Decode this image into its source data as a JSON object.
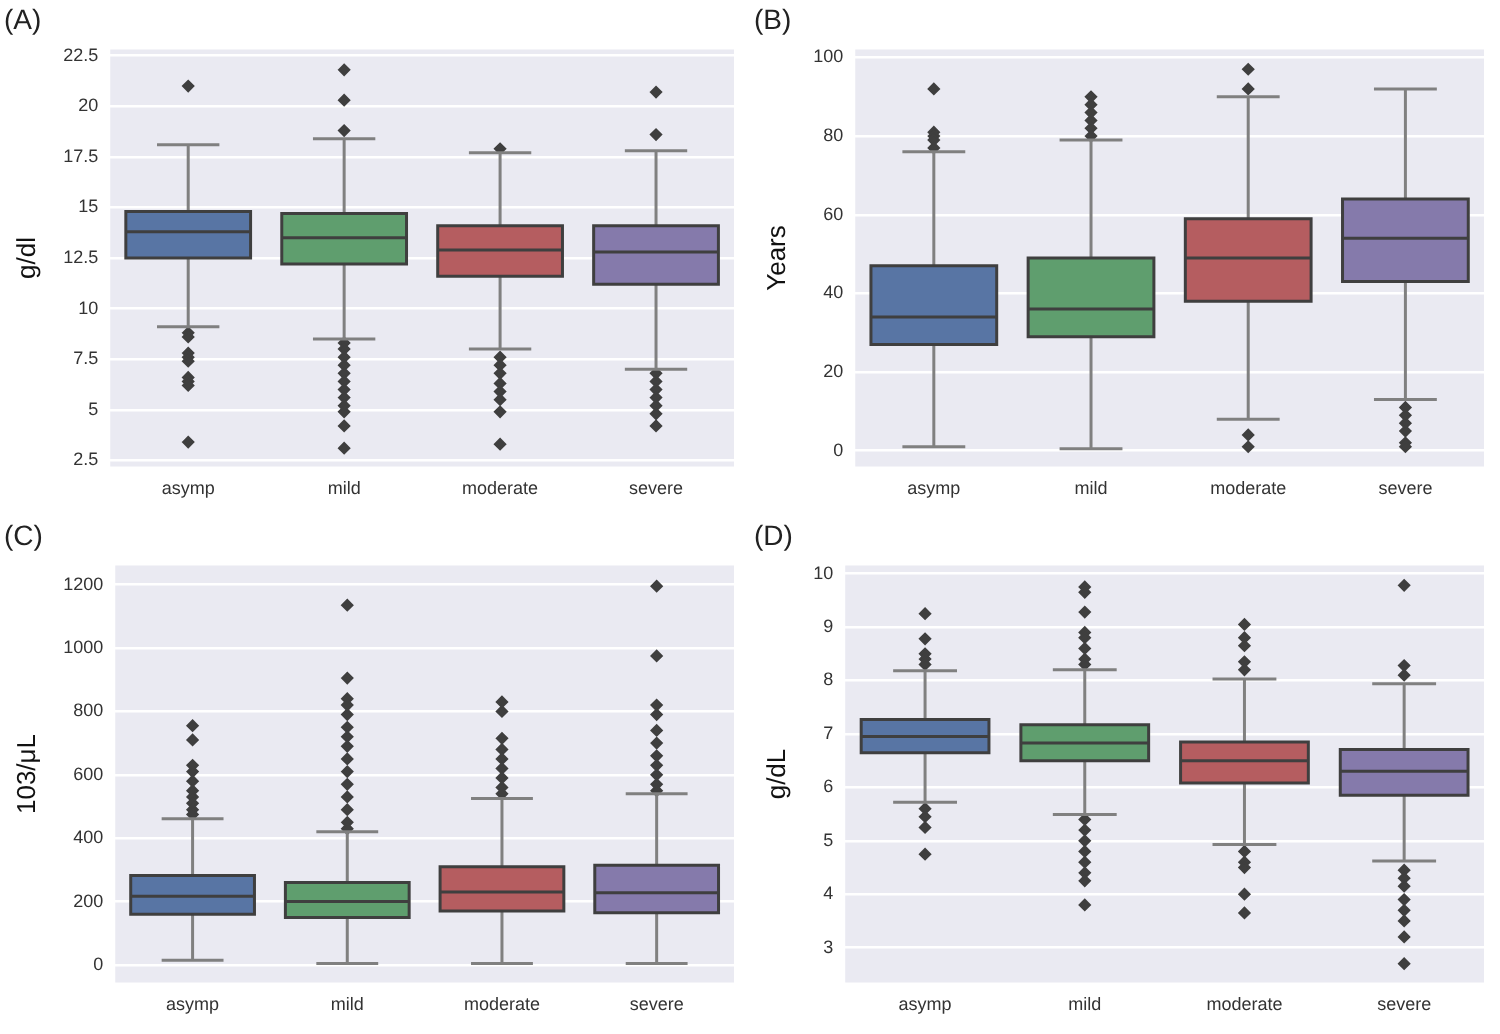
{
  "chart_data": [
    {
      "type": "box",
      "title": "(A)",
      "ylabel": "g/dl",
      "categories": [
        "asymp",
        "mild",
        "moderate",
        "severe"
      ],
      "colors": [
        "#5875a4",
        "#5f9e6e",
        "#b55d60",
        "#857aab"
      ],
      "ylim": [
        2.2,
        22.8
      ],
      "yticks": [
        2.5,
        5.0,
        7.5,
        10.0,
        12.5,
        15.0,
        17.5,
        20.0,
        22.5
      ],
      "grid": "y",
      "legend": false,
      "marker": "diamond",
      "boxes": [
        {
          "low": 9.1,
          "q1": 12.5,
          "median": 13.8,
          "q3": 14.8,
          "high": 18.1,
          "outliers": [
            21.0,
            8.8,
            8.6,
            7.8,
            7.6,
            7.4,
            6.6,
            6.4,
            6.2,
            3.4
          ]
        },
        {
          "low": 8.5,
          "q1": 12.2,
          "median": 13.5,
          "q3": 14.7,
          "high": 18.4,
          "outliers": [
            21.8,
            20.3,
            18.8,
            8.3,
            8.0,
            7.6,
            7.2,
            6.8,
            6.4,
            6.0,
            5.6,
            5.2,
            4.9,
            4.2,
            3.1
          ]
        },
        {
          "low": 8.0,
          "q1": 11.6,
          "median": 12.9,
          "q3": 14.1,
          "high": 17.7,
          "outliers": [
            17.9,
            7.6,
            7.2,
            6.8,
            6.3,
            5.9,
            5.5,
            4.9,
            3.3
          ]
        },
        {
          "low": 7.0,
          "q1": 11.2,
          "median": 12.8,
          "q3": 14.1,
          "high": 17.8,
          "outliers": [
            20.7,
            18.6,
            6.8,
            6.4,
            6.0,
            5.6,
            5.2,
            4.8,
            4.2
          ]
        }
      ]
    },
    {
      "type": "box",
      "title": "(B)",
      "ylabel": "Years",
      "categories": [
        "asymp",
        "mild",
        "moderate",
        "severe"
      ],
      "colors": [
        "#5875a4",
        "#5f9e6e",
        "#b55d60",
        "#857aab"
      ],
      "ylim": [
        -4,
        102
      ],
      "yticks": [
        0,
        20,
        40,
        60,
        80,
        100
      ],
      "grid": "y",
      "legend": false,
      "marker": "diamond",
      "boxes": [
        {
          "low": 1,
          "q1": 27,
          "median": 34,
          "q3": 47,
          "high": 76,
          "outliers": [
            92,
            81,
            80,
            79,
            77
          ]
        },
        {
          "low": 0.5,
          "q1": 29,
          "median": 36,
          "q3": 49,
          "high": 79,
          "outliers": [
            90,
            88,
            86,
            84,
            82,
            80
          ]
        },
        {
          "low": 8,
          "q1": 38,
          "median": 49,
          "q3": 59,
          "high": 90,
          "outliers": [
            97,
            92,
            4,
            1
          ]
        },
        {
          "low": 13,
          "q1": 43,
          "median": 54,
          "q3": 64,
          "high": 92,
          "outliers": [
            11,
            9,
            7,
            5,
            2,
            1
          ]
        }
      ]
    },
    {
      "type": "box",
      "title": "(C)",
      "ylabel": "103/μL",
      "categories": [
        "asymp",
        "mild",
        "moderate",
        "severe"
      ],
      "colors": [
        "#5875a4",
        "#5f9e6e",
        "#b55d60",
        "#857aab"
      ],
      "ylim": [
        -55,
        1260
      ],
      "yticks": [
        0,
        200,
        400,
        600,
        800,
        1000,
        1200
      ],
      "grid": "y",
      "legend": false,
      "marker": "diamond",
      "boxes": [
        {
          "low": 15,
          "q1": 160,
          "median": 217,
          "q3": 282,
          "high": 461,
          "outliers": [
            755,
            710,
            630,
            610,
            580,
            550,
            530,
            510,
            490,
            475
          ]
        },
        {
          "low": 5,
          "q1": 150,
          "median": 200,
          "q3": 260,
          "high": 420,
          "outliers": [
            1135,
            905,
            840,
            820,
            790,
            750,
            720,
            690,
            650,
            610,
            570,
            530,
            490,
            450,
            430
          ]
        },
        {
          "low": 5,
          "q1": 170,
          "median": 230,
          "q3": 310,
          "high": 525,
          "outliers": [
            830,
            800,
            715,
            680,
            650,
            620,
            590,
            560,
            540
          ]
        },
        {
          "low": 5,
          "q1": 165,
          "median": 228,
          "q3": 315,
          "high": 540,
          "outliers": [
            1195,
            975,
            820,
            790,
            740,
            700,
            660,
            630,
            600,
            570,
            550
          ]
        }
      ]
    },
    {
      "type": "box",
      "title": "(D)",
      "ylabel": "g/dL",
      "categories": [
        "asymp",
        "mild",
        "moderate",
        "severe"
      ],
      "colors": [
        "#5875a4",
        "#5f9e6e",
        "#b55d60",
        "#857aab"
      ],
      "ylim": [
        2.35,
        10.15
      ],
      "yticks": [
        3,
        4,
        5,
        6,
        7,
        8,
        9,
        10
      ],
      "grid": "y",
      "legend": false,
      "marker": "diamond",
      "boxes": [
        {
          "low": 5.72,
          "q1": 6.65,
          "median": 6.95,
          "q3": 7.27,
          "high": 8.18,
          "outliers": [
            9.25,
            8.78,
            8.5,
            8.4,
            8.3,
            5.6,
            5.45,
            5.25,
            4.75
          ]
        },
        {
          "low": 5.49,
          "q1": 6.5,
          "median": 6.83,
          "q3": 7.17,
          "high": 8.2,
          "outliers": [
            9.75,
            9.65,
            9.28,
            8.9,
            8.8,
            8.6,
            8.4,
            8.3,
            5.4,
            5.2,
            5.0,
            4.8,
            4.6,
            4.4,
            4.25,
            3.8
          ]
        },
        {
          "low": 4.93,
          "q1": 6.08,
          "median": 6.5,
          "q3": 6.85,
          "high": 8.03,
          "outliers": [
            9.05,
            8.8,
            8.65,
            8.35,
            8.2,
            4.8,
            4.6,
            4.5,
            4.0,
            3.65
          ]
        },
        {
          "low": 4.62,
          "q1": 5.85,
          "median": 6.3,
          "q3": 6.71,
          "high": 7.94,
          "outliers": [
            9.78,
            8.28,
            8.1,
            4.45,
            4.3,
            4.15,
            3.9,
            3.7,
            3.5,
            3.2,
            2.7
          ]
        }
      ]
    }
  ]
}
